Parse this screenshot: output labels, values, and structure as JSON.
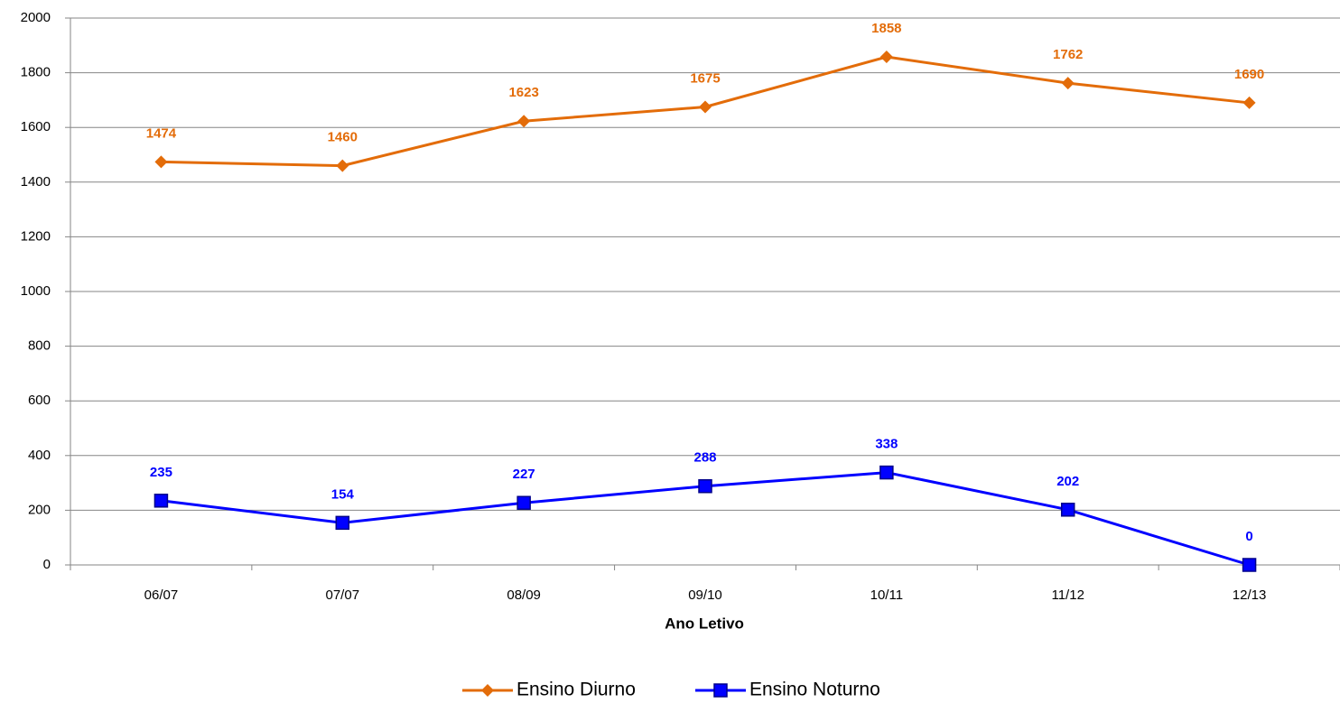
{
  "chart_data": {
    "type": "line",
    "x_label": "Ano Letivo",
    "categories": [
      "06/07",
      "07/07",
      "08/09",
      "09/10",
      "10/11",
      "11/12",
      "12/13"
    ],
    "series": [
      {
        "name": "Ensino Diurno",
        "color": "#e36c09",
        "marker": "diamond",
        "values": [
          1474,
          1460,
          1623,
          1675,
          1858,
          1762,
          1690
        ]
      },
      {
        "name": "Ensino Noturno",
        "color": "#0000ff",
        "marker": "square",
        "values": [
          235,
          154,
          227,
          288,
          338,
          202,
          0
        ]
      }
    ],
    "ylim": [
      0,
      2000
    ],
    "yticks": [
      0,
      200,
      400,
      600,
      800,
      1000,
      1200,
      1400,
      1600,
      1800,
      2000
    ],
    "grid": true,
    "legend": "bottom"
  }
}
